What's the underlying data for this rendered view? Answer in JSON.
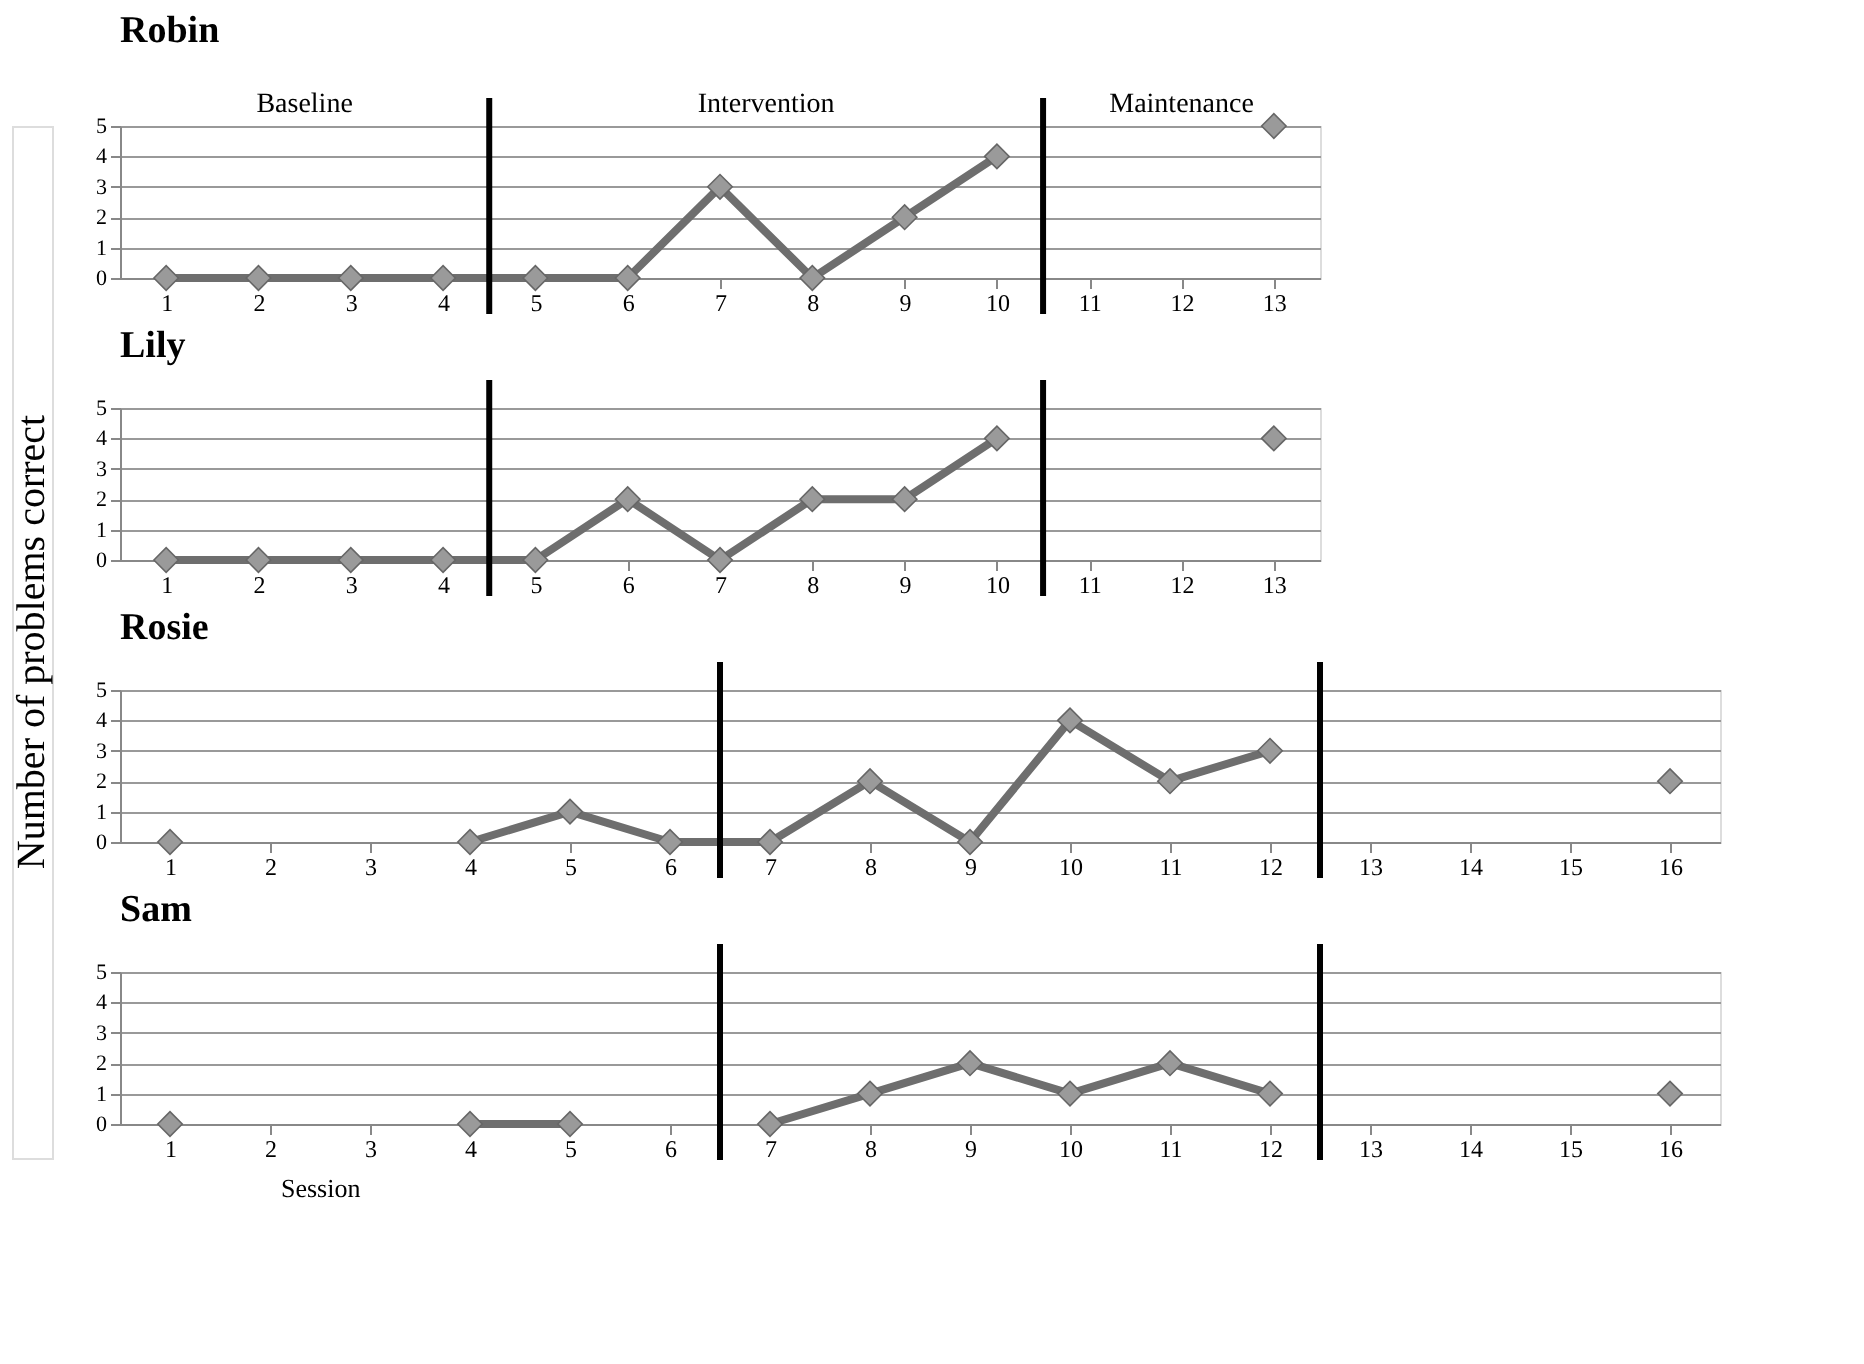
{
  "chart_data": [
    {
      "type": "line",
      "title": "Robin",
      "ylabel": "Number of problems correct",
      "x": [
        1,
        2,
        3,
        4,
        5,
        6,
        7,
        8,
        9,
        10,
        11,
        12,
        13
      ],
      "xlim": [
        0.5,
        13.5
      ],
      "xticks": [
        1,
        2,
        3,
        4,
        5,
        6,
        7,
        8,
        9,
        10,
        11,
        12,
        13
      ],
      "ylim": [
        0,
        5
      ],
      "yticks": [
        0,
        1,
        2,
        3,
        4,
        5
      ],
      "grid": "y",
      "marker": "diamond",
      "line_style": "solid",
      "series": [
        {
          "color": "#6e6e6e",
          "values": [
            0,
            0,
            0,
            0,
            0,
            0,
            3,
            0,
            2,
            4,
            null,
            null,
            5
          ]
        }
      ],
      "ref_lines": [
        {
          "axis": "x",
          "value": 4.5,
          "color": "#000000"
        },
        {
          "axis": "x",
          "value": 10.5,
          "color": "#000000"
        }
      ],
      "annotations": [
        "Baseline",
        "Intervention",
        "Maintenance"
      ]
    },
    {
      "type": "line",
      "title": "Lily",
      "x": [
        1,
        2,
        3,
        4,
        5,
        6,
        7,
        8,
        9,
        10,
        11,
        12,
        13
      ],
      "xlim": [
        0.5,
        13.5
      ],
      "xticks": [
        1,
        2,
        3,
        4,
        5,
        6,
        7,
        8,
        9,
        10,
        11,
        12,
        13
      ],
      "ylim": [
        0,
        5
      ],
      "yticks": [
        0,
        1,
        2,
        3,
        4,
        5
      ],
      "grid": "y",
      "marker": "diamond",
      "line_style": "solid",
      "series": [
        {
          "color": "#6e6e6e",
          "values": [
            0,
            0,
            0,
            0,
            0,
            2,
            0,
            2,
            2,
            4,
            null,
            null,
            4
          ]
        }
      ],
      "ref_lines": [
        {
          "axis": "x",
          "value": 4.5,
          "color": "#000000"
        },
        {
          "axis": "x",
          "value": 10.5,
          "color": "#000000"
        }
      ]
    },
    {
      "type": "line",
      "title": "Rosie",
      "x": [
        1,
        2,
        3,
        4,
        5,
        6,
        7,
        8,
        9,
        10,
        11,
        12,
        13,
        14,
        15,
        16
      ],
      "xlim": [
        0.5,
        16.5
      ],
      "xticks": [
        1,
        2,
        3,
        4,
        5,
        6,
        7,
        8,
        9,
        10,
        11,
        12,
        13,
        14,
        15,
        16
      ],
      "ylim": [
        0,
        5
      ],
      "yticks": [
        0,
        1,
        2,
        3,
        4,
        5
      ],
      "grid": "y",
      "marker": "diamond",
      "line_style": "solid",
      "series": [
        {
          "color": "#6e6e6e",
          "values": [
            0,
            null,
            null,
            0,
            1,
            0,
            0,
            2,
            0,
            4,
            2,
            3,
            null,
            null,
            null,
            2
          ]
        }
      ],
      "ref_lines": [
        {
          "axis": "x",
          "value": 6.5,
          "color": "#000000"
        },
        {
          "axis": "x",
          "value": 12.5,
          "color": "#000000"
        }
      ]
    },
    {
      "type": "line",
      "title": "Sam",
      "xlabel": "Session",
      "x": [
        1,
        2,
        3,
        4,
        5,
        6,
        7,
        8,
        9,
        10,
        11,
        12,
        13,
        14,
        15,
        16
      ],
      "xlim": [
        0.5,
        16.5
      ],
      "xticks": [
        1,
        2,
        3,
        4,
        5,
        6,
        7,
        8,
        9,
        10,
        11,
        12,
        13,
        14,
        15,
        16
      ],
      "ylim": [
        0,
        5
      ],
      "yticks": [
        0,
        1,
        2,
        3,
        4,
        5
      ],
      "grid": "y",
      "marker": "diamond",
      "line_style": "solid",
      "series": [
        {
          "color": "#6e6e6e",
          "values": [
            0,
            null,
            null,
            0,
            0,
            null,
            0,
            1,
            2,
            1,
            2,
            1,
            null,
            null,
            null,
            1
          ]
        }
      ],
      "ref_lines": [
        {
          "axis": "x",
          "value": 6.5,
          "color": "#000000"
        },
        {
          "axis": "x",
          "value": 12.5,
          "color": "#000000"
        }
      ]
    }
  ]
}
